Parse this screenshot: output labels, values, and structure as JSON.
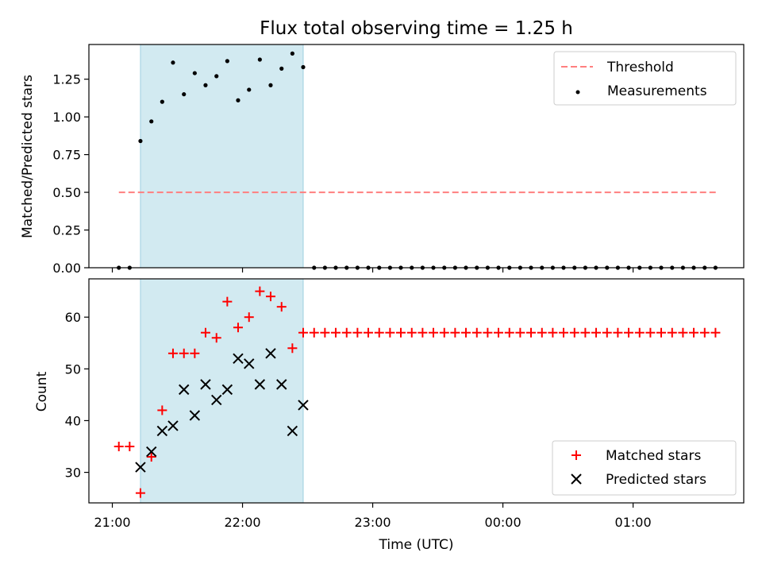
{
  "chart_data": [
    {
      "type": "scatter",
      "title": "Flux total observing time = 1.25 h",
      "xlabel": "",
      "ylabel": "Matched/Predicted stars",
      "xunit": "hours since 21:00 UTC",
      "xlim": [
        -0.18,
        4.85
      ],
      "ylim": [
        0,
        1.48
      ],
      "yticks": [
        0.0,
        0.25,
        0.5,
        0.75,
        1.0,
        1.25
      ],
      "yticklabels": [
        "0.00",
        "0.25",
        "0.50",
        "0.75",
        "1.00",
        "1.25"
      ],
      "xticks": [
        0,
        1,
        2,
        3,
        4
      ],
      "shade": {
        "from": 0.216,
        "to": 1.466,
        "color": "#add8e6"
      },
      "legend": {
        "position": "top-right",
        "entries": [
          "Threshold",
          "Measurements"
        ]
      },
      "threshold": {
        "name": "Threshold",
        "y": 0.5,
        "x": [
          0.05,
          4.65
        ],
        "color": "#ff7f7f"
      },
      "series": [
        {
          "name": "Measurements",
          "color": "#000000",
          "x": [
            0.05,
            0.133,
            0.216,
            0.3,
            0.383,
            0.466,
            0.55,
            0.633,
            0.716,
            0.8,
            0.883,
            0.966,
            1.05,
            1.133,
            1.216,
            1.3,
            1.383,
            1.466,
            1.55,
            1.633,
            1.716,
            1.8,
            1.883,
            1.966,
            2.05,
            2.133,
            2.216,
            2.3,
            2.383,
            2.466,
            2.55,
            2.633,
            2.716,
            2.8,
            2.883,
            2.966,
            3.05,
            3.133,
            3.216,
            3.3,
            3.383,
            3.466,
            3.55,
            3.633,
            3.716,
            3.8,
            3.883,
            3.966,
            4.05,
            4.133,
            4.216,
            4.3,
            4.383,
            4.466,
            4.55,
            4.633
          ],
          "y": [
            0,
            0,
            0.84,
            0.97,
            1.1,
            1.36,
            1.15,
            1.29,
            1.21,
            1.27,
            1.37,
            1.11,
            1.18,
            1.38,
            1.21,
            1.32,
            1.42,
            1.33,
            0,
            0,
            0,
            0,
            0,
            0,
            0,
            0,
            0,
            0,
            0,
            0,
            0,
            0,
            0,
            0,
            0,
            0,
            0,
            0,
            0,
            0,
            0,
            0,
            0,
            0,
            0,
            0,
            0,
            0,
            0,
            0,
            0,
            0,
            0,
            0,
            0,
            0
          ]
        }
      ]
    },
    {
      "type": "scatter",
      "title": "",
      "xlabel": "Time (UTC)",
      "ylabel": "Count",
      "xlim": [
        -0.18,
        4.85
      ],
      "ylim": [
        24.1,
        67.4
      ],
      "yticks": [
        30,
        40,
        50,
        60
      ],
      "yticklabels": [
        "30",
        "40",
        "50",
        "60"
      ],
      "xticks": [
        0,
        1,
        2,
        3,
        4
      ],
      "xticklabels": [
        "21:00",
        "22:00",
        "23:00",
        "00:00",
        "01:00"
      ],
      "shade": {
        "from": 0.216,
        "to": 1.466,
        "color": "#add8e6"
      },
      "legend": {
        "position": "bottom-right",
        "entries": [
          "Matched stars",
          "Predicted stars"
        ]
      },
      "series": [
        {
          "name": "Matched stars",
          "marker": "plus",
          "color": "#ff0000",
          "x": [
            0.05,
            0.133,
            0.216,
            0.3,
            0.383,
            0.466,
            0.55,
            0.633,
            0.716,
            0.8,
            0.883,
            0.966,
            1.05,
            1.133,
            1.216,
            1.3,
            1.383,
            1.466,
            1.55,
            1.633,
            1.716,
            1.8,
            1.883,
            1.966,
            2.05,
            2.133,
            2.216,
            2.3,
            2.383,
            2.466,
            2.55,
            2.633,
            2.716,
            2.8,
            2.883,
            2.966,
            3.05,
            3.133,
            3.216,
            3.3,
            3.383,
            3.466,
            3.55,
            3.633,
            3.716,
            3.8,
            3.883,
            3.966,
            4.05,
            4.133,
            4.216,
            4.3,
            4.383,
            4.466,
            4.55,
            4.633
          ],
          "y": [
            35,
            35,
            26,
            33,
            42,
            53,
            53,
            53,
            57,
            56,
            63,
            58,
            60,
            65,
            64,
            62,
            54,
            57,
            57,
            57,
            57,
            57,
            57,
            57,
            57,
            57,
            57,
            57,
            57,
            57,
            57,
            57,
            57,
            57,
            57,
            57,
            57,
            57,
            57,
            57,
            57,
            57,
            57,
            57,
            57,
            57,
            57,
            57,
            57,
            57,
            57,
            57,
            57,
            57,
            57,
            57
          ]
        },
        {
          "name": "Predicted stars",
          "marker": "x",
          "color": "#000000",
          "x": [
            0.216,
            0.3,
            0.383,
            0.466,
            0.55,
            0.633,
            0.716,
            0.8,
            0.883,
            0.966,
            1.05,
            1.133,
            1.216,
            1.3,
            1.383,
            1.466
          ],
          "y": [
            31,
            34,
            38,
            39,
            46,
            41,
            47,
            44,
            46,
            52,
            51,
            47,
            53,
            47,
            38,
            43
          ]
        }
      ]
    }
  ]
}
